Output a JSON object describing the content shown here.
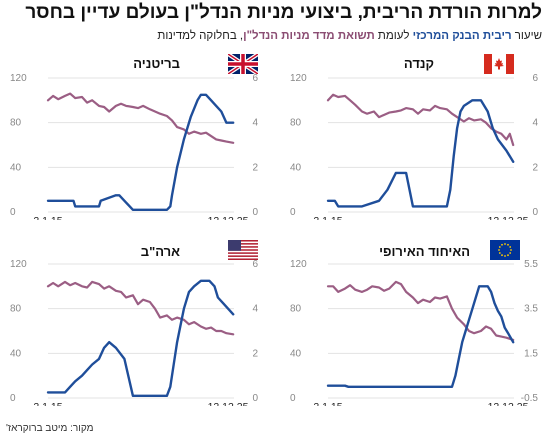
{
  "header": {
    "title": "למרות הורדת הריבית, ביצועי מניות הנדל\"ן בעולם עדיין בחסר",
    "subtitle_prefix": "שיעור",
    "subtitle_blue": "ריבית הבנק המרכזי",
    "subtitle_mid": "לעומת",
    "subtitle_purple": "תשואת מדד מניות הנדל\"ן",
    "subtitle_suffix": ", בחלוקה למדינות"
  },
  "footer": {
    "source": "מקור: מיטב ברוקראז'"
  },
  "colors": {
    "rate": "#1f4e9a",
    "reit": "#9b5e84",
    "grid": "#e3e3e3"
  },
  "chart_data": [
    {
      "type": "line",
      "panel": "canada",
      "flag_icon": "canada-flag-icon",
      "title": "קנדה",
      "x": [
        "2.1.15",
        "12.12.25"
      ],
      "x_start_label": "2.1.15",
      "x_end_label": "12.12.25",
      "left_axis": {
        "ticks": [
          "0",
          "40",
          "80",
          "120"
        ],
        "lim": [
          0,
          120
        ]
      },
      "right_axis": {
        "ticks": [
          "0",
          "2",
          "4",
          "6"
        ],
        "lim": [
          0,
          6
        ]
      },
      "series": [
        {
          "axis": "right",
          "color": "#1f4e9a",
          "points": [
            [
              0,
              0.5
            ],
            [
              0.2,
              0.5
            ],
            [
              0.4,
              0.5
            ],
            [
              0.6,
              0.25
            ],
            [
              1,
              0.25
            ],
            [
              2,
              0.25
            ],
            [
              3,
              0.5
            ],
            [
              3.5,
              1
            ],
            [
              4,
              1.75
            ],
            [
              4.2,
              1.75
            ],
            [
              4.6,
              1.75
            ],
            [
              5,
              0.25
            ],
            [
              6,
              0.25
            ],
            [
              7,
              0.25
            ],
            [
              7.2,
              1
            ],
            [
              7.4,
              2.5
            ],
            [
              7.6,
              3.75
            ],
            [
              7.8,
              4.5
            ],
            [
              8,
              4.75
            ],
            [
              8.5,
              5
            ],
            [
              9,
              5
            ],
            [
              9.4,
              4.5
            ],
            [
              9.7,
              3.75
            ],
            [
              10,
              3.25
            ],
            [
              10.5,
              2.75
            ],
            [
              10.9,
              2.25
            ]
          ]
        },
        {
          "axis": "left",
          "color": "#9b5e84",
          "points": [
            [
              0,
              100
            ],
            [
              0.3,
              105
            ],
            [
              0.6,
              103
            ],
            [
              1,
              104
            ],
            [
              1.3,
              100
            ],
            [
              1.6,
              96
            ],
            [
              2,
              90
            ],
            [
              2.3,
              88
            ],
            [
              2.7,
              90
            ],
            [
              3,
              85
            ],
            [
              3.3,
              87
            ],
            [
              3.6,
              89
            ],
            [
              4,
              90
            ],
            [
              4.3,
              91
            ],
            [
              4.6,
              93
            ],
            [
              5,
              92
            ],
            [
              5.3,
              88
            ],
            [
              5.6,
              92
            ],
            [
              6,
              91
            ],
            [
              6.3,
              95
            ],
            [
              6.6,
              93
            ],
            [
              7,
              92
            ],
            [
              7.3,
              88
            ],
            [
              7.6,
              85
            ],
            [
              8,
              81
            ],
            [
              8.3,
              84
            ],
            [
              8.6,
              82
            ],
            [
              9,
              83
            ],
            [
              9.3,
              80
            ],
            [
              9.6,
              75
            ],
            [
              9.9,
              72
            ],
            [
              10.2,
              70
            ],
            [
              10.5,
              65
            ],
            [
              10.7,
              70
            ],
            [
              10.9,
              60
            ]
          ]
        }
      ]
    },
    {
      "type": "line",
      "panel": "uk",
      "flag_icon": "uk-flag-icon",
      "title": "בריטניה",
      "x": [
        "2.1.15",
        "12.12.25"
      ],
      "x_start_label": "2.1.15",
      "x_end_label": "12.12.25",
      "left_axis": {
        "ticks": [
          "0",
          "40",
          "80",
          "120"
        ],
        "lim": [
          0,
          120
        ]
      },
      "right_axis": {
        "ticks": [
          "0",
          "2",
          "4",
          "6"
        ],
        "lim": [
          0,
          6
        ]
      },
      "series": [
        {
          "axis": "right",
          "color": "#1f4e9a",
          "points": [
            [
              0,
              0.5
            ],
            [
              1.5,
              0.5
            ],
            [
              1.6,
              0.25
            ],
            [
              3,
              0.25
            ],
            [
              3.1,
              0.5
            ],
            [
              4,
              0.75
            ],
            [
              4.2,
              0.75
            ],
            [
              5,
              0.1
            ],
            [
              7,
              0.1
            ],
            [
              7.2,
              0.25
            ],
            [
              7.3,
              0.75
            ],
            [
              7.6,
              2
            ],
            [
              8,
              3.25
            ],
            [
              8.4,
              4.25
            ],
            [
              8.8,
              5
            ],
            [
              9,
              5.25
            ],
            [
              9.3,
              5.25
            ],
            [
              9.6,
              5
            ],
            [
              9.9,
              4.75
            ],
            [
              10.2,
              4.5
            ],
            [
              10.5,
              4
            ],
            [
              10.9,
              4
            ]
          ]
        },
        {
          "axis": "left",
          "color": "#9b5e84",
          "points": [
            [
              0,
              100
            ],
            [
              0.3,
              104
            ],
            [
              0.6,
              101
            ],
            [
              1,
              104
            ],
            [
              1.3,
              106
            ],
            [
              1.6,
              102
            ],
            [
              2,
              103
            ],
            [
              2.3,
              98
            ],
            [
              2.6,
              100
            ],
            [
              3,
              95
            ],
            [
              3.3,
              94
            ],
            [
              3.6,
              90
            ],
            [
              4,
              95
            ],
            [
              4.3,
              97
            ],
            [
              4.6,
              95
            ],
            [
              5,
              94
            ],
            [
              5.3,
              93
            ],
            [
              5.6,
              95
            ],
            [
              6,
              92
            ],
            [
              6.3,
              90
            ],
            [
              6.6,
              88
            ],
            [
              7,
              86
            ],
            [
              7.3,
              82
            ],
            [
              7.6,
              76
            ],
            [
              8,
              74
            ],
            [
              8.3,
              70
            ],
            [
              8.6,
              72
            ],
            [
              9,
              70
            ],
            [
              9.3,
              71
            ],
            [
              9.6,
              68
            ],
            [
              9.9,
              65
            ],
            [
              10.2,
              64
            ],
            [
              10.5,
              63
            ],
            [
              10.9,
              62
            ]
          ]
        }
      ]
    },
    {
      "type": "line",
      "panel": "eurozone",
      "flag_icon": "eu-flag-icon",
      "title": "האיחוד האירופי",
      "x": [
        "2.1.15",
        "12.12.25"
      ],
      "x_start_label": "2.1.15",
      "x_end_label": "12.12.25",
      "left_axis": {
        "ticks": [
          "0",
          "40",
          "80",
          "120"
        ],
        "lim": [
          0,
          120
        ]
      },
      "right_axis": {
        "ticks": [
          "-0.5",
          "1.5",
          "3.5",
          "5.5"
        ],
        "lim": [
          -0.5,
          5.5
        ]
      },
      "series": [
        {
          "axis": "right",
          "color": "#1f4e9a",
          "points": [
            [
              0,
              0.05
            ],
            [
              1,
              0.05
            ],
            [
              1.2,
              0.0
            ],
            [
              7.3,
              0.0
            ],
            [
              7.5,
              0.5
            ],
            [
              7.7,
              1.25
            ],
            [
              7.9,
              2.0
            ],
            [
              8.1,
              2.5
            ],
            [
              8.3,
              3.0
            ],
            [
              8.5,
              3.5
            ],
            [
              8.7,
              4.0
            ],
            [
              8.9,
              4.5
            ],
            [
              9.4,
              4.5
            ],
            [
              9.6,
              4.25
            ],
            [
              9.8,
              3.75
            ],
            [
              10.0,
              3.4
            ],
            [
              10.2,
              3.15
            ],
            [
              10.4,
              2.65
            ],
            [
              10.6,
              2.4
            ],
            [
              10.9,
              2.0
            ]
          ]
        },
        {
          "axis": "left",
          "color": "#9b5e84",
          "points": [
            [
              0,
              100
            ],
            [
              0.3,
              100
            ],
            [
              0.6,
              95
            ],
            [
              1,
              98
            ],
            [
              1.3,
              101
            ],
            [
              1.6,
              97
            ],
            [
              2,
              95
            ],
            [
              2.3,
              97
            ],
            [
              2.6,
              100
            ],
            [
              3,
              99
            ],
            [
              3.3,
              96
            ],
            [
              3.6,
              98
            ],
            [
              4,
              104
            ],
            [
              4.3,
              102
            ],
            [
              4.6,
              95
            ],
            [
              5,
              90
            ],
            [
              5.3,
              85
            ],
            [
              5.6,
              88
            ],
            [
              6,
              86
            ],
            [
              6.3,
              90
            ],
            [
              6.6,
              89
            ],
            [
              7,
              91
            ],
            [
              7.3,
              80
            ],
            [
              7.6,
              72
            ],
            [
              8,
              66
            ],
            [
              8.3,
              60
            ],
            [
              8.6,
              58
            ],
            [
              9,
              60
            ],
            [
              9.3,
              64
            ],
            [
              9.6,
              62
            ],
            [
              9.9,
              56
            ],
            [
              10.2,
              55
            ],
            [
              10.5,
              54
            ],
            [
              10.9,
              52
            ]
          ]
        }
      ]
    },
    {
      "type": "line",
      "panel": "us",
      "flag_icon": "us-flag-icon",
      "title": "ארה\"ב",
      "x": [
        "2.1.15",
        "12.12.25"
      ],
      "x_start_label": "2.1.15",
      "x_end_label": "12.12.25",
      "left_axis": {
        "ticks": [
          "0",
          "40",
          "80",
          "120"
        ],
        "lim": [
          0,
          120
        ]
      },
      "right_axis": {
        "ticks": [
          "0",
          "2",
          "4",
          "6"
        ],
        "lim": [
          0,
          6
        ]
      },
      "series": [
        {
          "axis": "right",
          "color": "#1f4e9a",
          "points": [
            [
              0,
              0.25
            ],
            [
              1,
              0.25
            ],
            [
              1.3,
              0.5
            ],
            [
              1.6,
              0.75
            ],
            [
              2,
              1.0
            ],
            [
              2.3,
              1.25
            ],
            [
              2.6,
              1.5
            ],
            [
              3,
              1.75
            ],
            [
              3.3,
              2.25
            ],
            [
              3.6,
              2.5
            ],
            [
              4,
              2.25
            ],
            [
              4.5,
              1.75
            ],
            [
              5,
              0.1
            ],
            [
              7,
              0.1
            ],
            [
              7.2,
              0.5
            ],
            [
              7.4,
              1.5
            ],
            [
              7.6,
              2.5
            ],
            [
              7.8,
              3.25
            ],
            [
              8,
              4.0
            ],
            [
              8.3,
              4.75
            ],
            [
              8.6,
              5.0
            ],
            [
              9,
              5.25
            ],
            [
              9.5,
              5.25
            ],
            [
              9.8,
              5.0
            ],
            [
              10.0,
              4.5
            ],
            [
              10.3,
              4.25
            ],
            [
              10.6,
              4.0
            ],
            [
              10.9,
              3.75
            ]
          ]
        },
        {
          "axis": "left",
          "color": "#9b5e84",
          "points": [
            [
              0,
              100
            ],
            [
              0.3,
              103
            ],
            [
              0.6,
              100
            ],
            [
              1,
              104
            ],
            [
              1.3,
              101
            ],
            [
              1.6,
              103
            ],
            [
              2,
              100
            ],
            [
              2.3,
              99
            ],
            [
              2.6,
              104
            ],
            [
              3,
              102
            ],
            [
              3.3,
              98
            ],
            [
              3.6,
              100
            ],
            [
              4,
              96
            ],
            [
              4.3,
              95
            ],
            [
              4.6,
              90
            ],
            [
              5,
              92
            ],
            [
              5.3,
              84
            ],
            [
              5.6,
              88
            ],
            [
              6,
              86
            ],
            [
              6.3,
              80
            ],
            [
              6.6,
              72
            ],
            [
              7,
              74
            ],
            [
              7.3,
              70
            ],
            [
              7.6,
              72
            ],
            [
              8,
              70
            ],
            [
              8.3,
              66
            ],
            [
              8.6,
              68
            ],
            [
              9,
              64
            ],
            [
              9.3,
              62
            ],
            [
              9.6,
              63
            ],
            [
              9.9,
              60
            ],
            [
              10.2,
              60
            ],
            [
              10.5,
              58
            ],
            [
              10.9,
              57
            ]
          ]
        }
      ]
    }
  ]
}
